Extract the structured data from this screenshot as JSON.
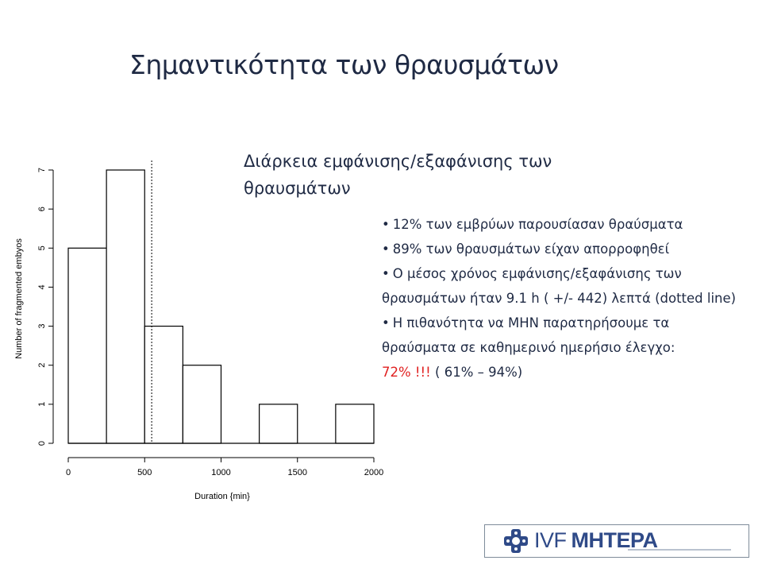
{
  "slide": {
    "title": "Σημαντικότητα των θραυσμάτων",
    "subtitle": "Διάρκεια εμφάνισης/εξαφάνισης των θραυσμάτων"
  },
  "bullets": [
    {
      "dot": "•",
      "text": "12% των εμβρύων παρουσίασαν θραύσματα"
    },
    {
      "dot": "•",
      "text": "89% των θραυσμάτων είχαν απορροφηθεί"
    },
    {
      "dot": "•",
      "text": "Ο μέσος χρόνος εμφάνισης/εξαφάνισης των θραυσμάτων ήταν 9.1 h ( +/- 442) λεπτά (dotted line)"
    },
    {
      "dot": "•",
      "text": "Η πιθανότητα να ΜΗΝ παρατηρήσουμε τα θραύσματα σε καθημερινό ημερήσιο έλεγχο:",
      "highlight": "72% !!!",
      "tail": " ( 61% – 94%)"
    }
  ],
  "chart_data": {
    "type": "bar",
    "subtype": "histogram",
    "bins": [
      [
        0,
        250
      ],
      [
        250,
        500
      ],
      [
        500,
        750
      ],
      [
        750,
        1000
      ],
      [
        1000,
        1250
      ],
      [
        1250,
        1500
      ],
      [
        1500,
        1750
      ],
      [
        1750,
        2000
      ]
    ],
    "values": [
      5,
      7,
      3,
      2,
      0,
      1,
      0,
      1
    ],
    "mean_line_x": 546,
    "xlabel": "Duration {min}",
    "ylabel": "Number of fragmented embyos",
    "xlim": [
      0,
      2000
    ],
    "ylim": [
      0,
      7
    ],
    "xticks": [
      "0",
      "500",
      "1000",
      "1500",
      "2000"
    ],
    "yticks": [
      "0",
      "1",
      "2",
      "3",
      "4",
      "5",
      "6",
      "7"
    ],
    "bar_fill": "#ffffff",
    "bar_stroke": "#000000",
    "grid": false
  },
  "logo": {
    "text_ivf": "IVF",
    "text_brand": "ΜΗΤΕΡΑ",
    "brand_color": "#2f4a88",
    "cross_color": "#2f4a88"
  },
  "colors": {
    "title": "#1f2a44",
    "highlight": "#e02020"
  }
}
